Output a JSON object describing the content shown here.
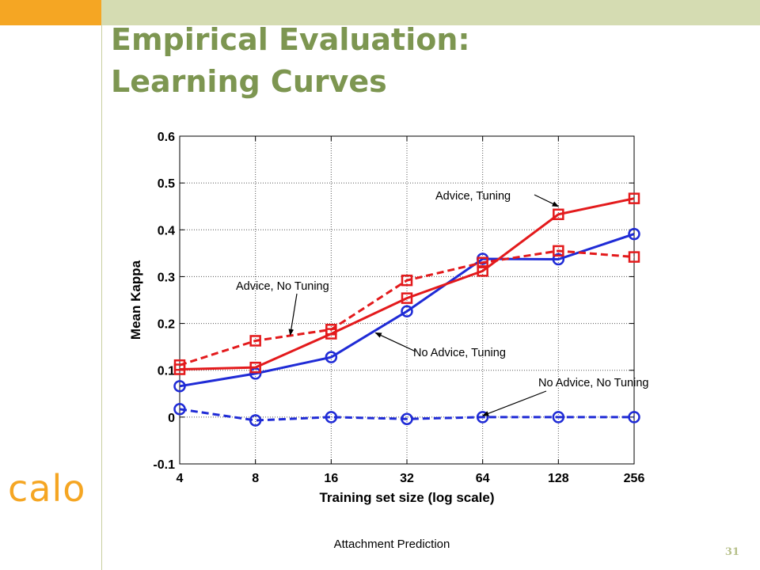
{
  "slide": {
    "title_line1": "Empirical Evaluation:",
    "title_line2": "Learning Curves",
    "logo_text": "calo",
    "caption": "Attachment Prediction",
    "page_number": "31",
    "colors": {
      "title": "#7d9651",
      "accent_orange": "#f5a623",
      "top_bar": "#d5dcb2"
    }
  },
  "chart_data": {
    "type": "line",
    "xlabel": "Training set size (log scale)",
    "ylabel": "Mean Kappa",
    "x_scale": "log2",
    "x": [
      4,
      8,
      16,
      32,
      64,
      128,
      256
    ],
    "x_tick_labels": [
      "4",
      "8",
      "16",
      "32",
      "64",
      "128",
      "256"
    ],
    "ylim": [
      -0.1,
      0.6
    ],
    "y_ticks": [
      -0.1,
      0,
      0.1,
      0.2,
      0.3,
      0.4,
      0.5,
      0.6
    ],
    "y_tick_labels": [
      "-0.1",
      "0",
      "0.1",
      "0.2",
      "0.3",
      "0.4",
      "0.5",
      "0.6"
    ],
    "grid": true,
    "series": [
      {
        "name": "Advice, Tuning",
        "color": "#e31a1c",
        "dash": "solid",
        "marker": "square",
        "values": [
          0.102,
          0.106,
          0.178,
          0.254,
          0.312,
          0.433,
          0.467
        ]
      },
      {
        "name": "Advice, No Tuning",
        "color": "#e31a1c",
        "dash": "dashed",
        "marker": "square",
        "values": [
          0.111,
          0.163,
          0.187,
          0.292,
          0.33,
          0.355,
          0.342
        ]
      },
      {
        "name": "No Advice, Tuning",
        "color": "#1f2bd6",
        "dash": "solid",
        "marker": "circle",
        "values": [
          0.066,
          0.093,
          0.128,
          0.226,
          0.338,
          0.337,
          0.391
        ]
      },
      {
        "name": "No Advice, No Tuning",
        "color": "#1f2bd6",
        "dash": "dashed",
        "marker": "circle",
        "values": [
          0.017,
          -0.007,
          0.0,
          -0.004,
          0.0,
          0.0,
          0.0
        ]
      }
    ],
    "annotations": [
      {
        "text": "Advice, Tuning",
        "series": 0,
        "x": 128,
        "y": 0.45
      },
      {
        "text": "Advice, No Tuning",
        "series": 1,
        "x": 11,
        "y": 0.175
      },
      {
        "text": "No Advice, Tuning",
        "series": 2,
        "x": 24,
        "y": 0.18
      },
      {
        "text": "No Advice, No Tuning",
        "series": 3,
        "x": 64,
        "y": 0.003
      }
    ]
  }
}
